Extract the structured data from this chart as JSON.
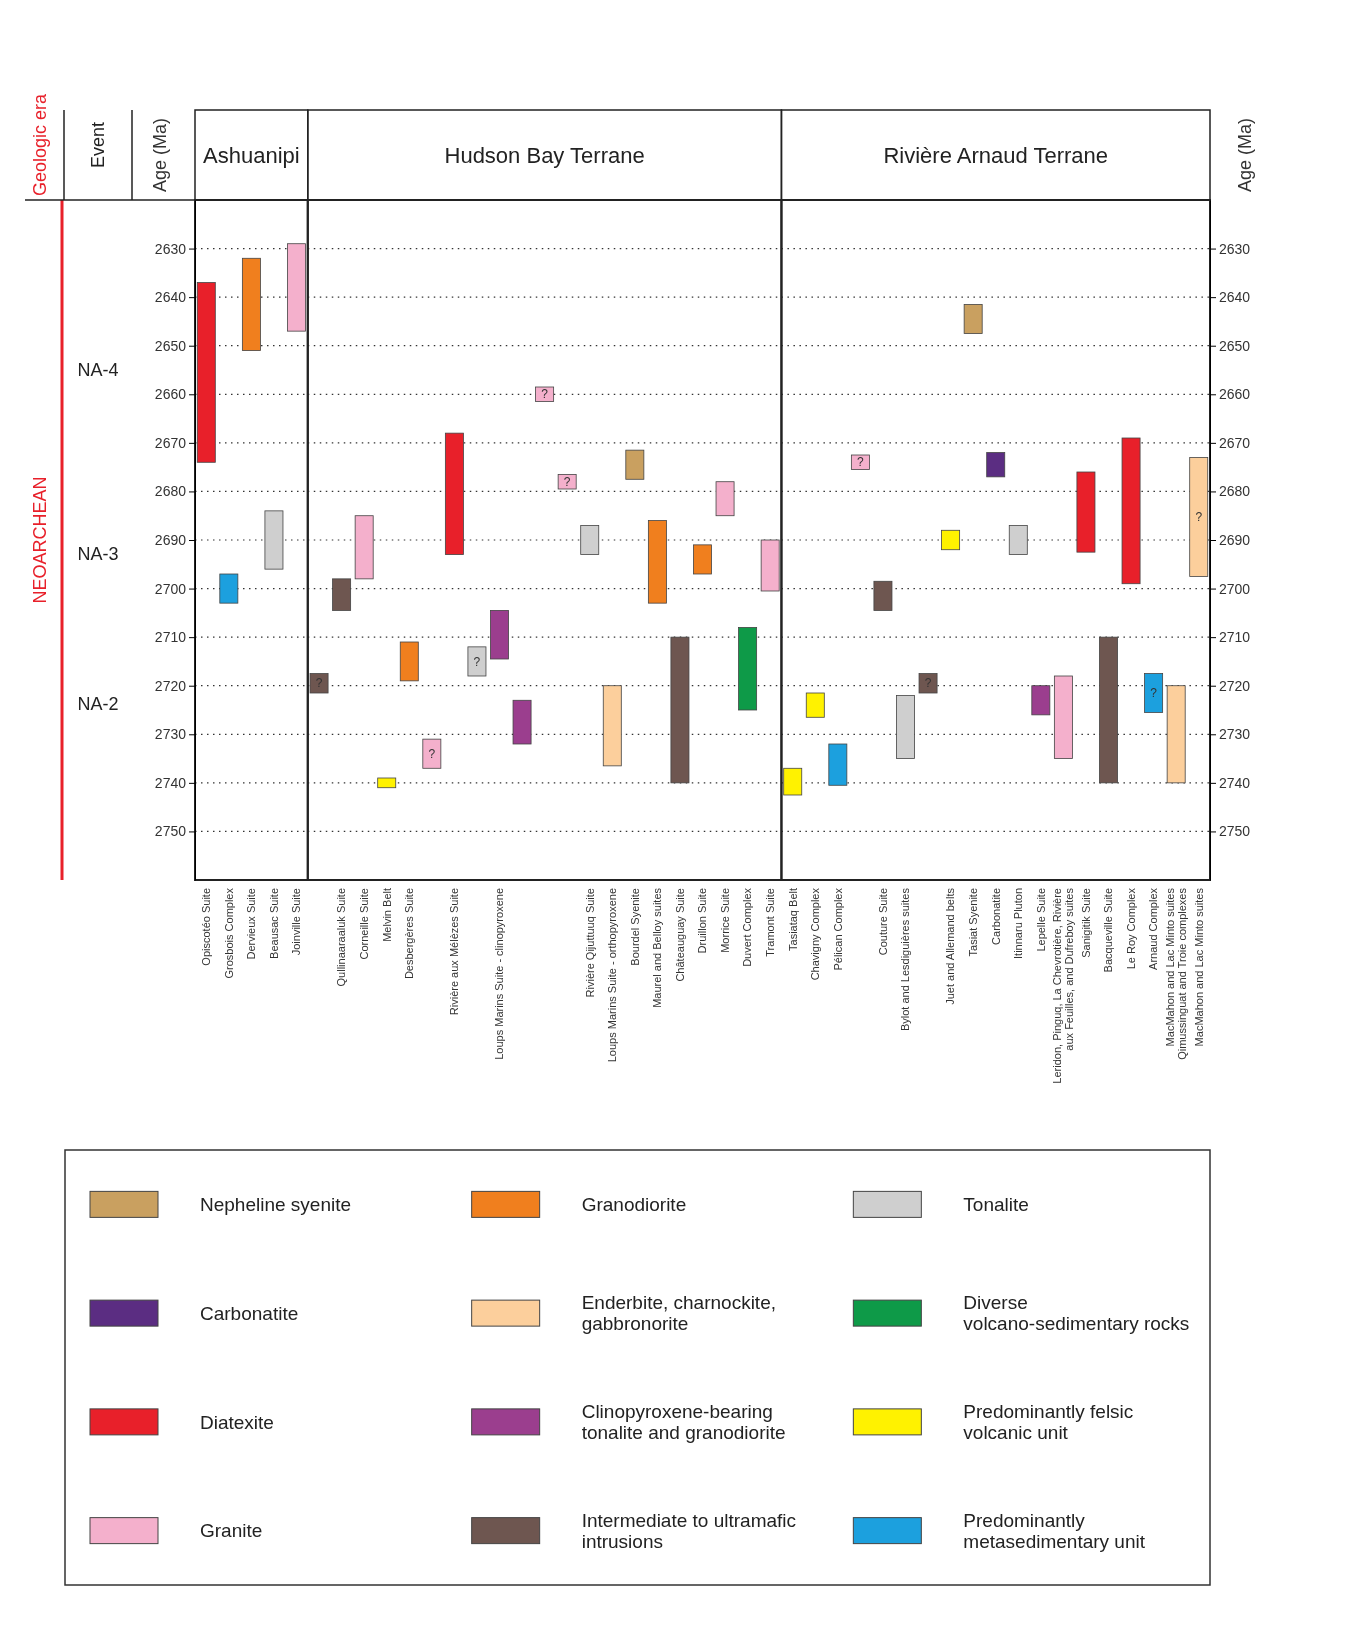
{
  "chart_data": [
    {
      "type": "bar",
      "title": "Ashuanipi",
      "ylabel": "Age (Ma)",
      "annotations": [
        "Geologic era",
        "Event",
        "NEOARCHEAN",
        "NA-4",
        "NA-3",
        "NA-2"
      ],
      "categories": [
        "Opiscotéo Suite",
        "Grosbois Complex",
        "Dervieux Suite",
        "Beausac Suite",
        "Joinville Suite"
      ],
      "ylim": [
        2760,
        2620
      ],
      "yticks": [
        2630,
        2640,
        2650,
        2660,
        2670,
        2680,
        2690,
        2700,
        2710,
        2720,
        2730,
        2740,
        2750
      ],
      "grid": "y",
      "series": [
        {
          "color": "#e8202a",
          "values": [
            37,
            null,
            null,
            null,
            null
          ],
          "base": [
            2637,
            null,
            null,
            null,
            null
          ]
        },
        {
          "color": "#f4b0cc",
          "values": [
            null,
            null,
            null,
            null,
            18
          ],
          "base": [
            null,
            null,
            null,
            null,
            2629
          ]
        },
        {
          "color": "#f07f1e",
          "values": [
            null,
            null,
            19,
            null,
            null
          ],
          "base": [
            null,
            null,
            2632,
            null,
            null
          ]
        },
        {
          "color": "#cfcfcf",
          "values": [
            null,
            null,
            null,
            12,
            null
          ],
          "base": [
            null,
            null,
            null,
            2684,
            null
          ]
        },
        {
          "color": "#1ca0de",
          "values": [
            null,
            6,
            null,
            null,
            null
          ],
          "base": [
            null,
            2697,
            null,
            null,
            null
          ]
        }
      ]
    },
    {
      "type": "bar",
      "title": "Hudson Bay Terrane",
      "tick_labels": "x",
      "categories": [
        null,
        "Qullinaaraaluk Suite",
        "Corneille Suite",
        "Melvin Belt",
        "Desbergères Suite",
        null,
        "Rivière aux Mélèzes Suite",
        null,
        "Loups Marins Suite - clinopyroxene",
        null,
        null,
        null,
        "Rivière Qijuttuuq Suite",
        "Loups Marins Suite - orthopyroxene",
        "Bourdel Syenite",
        "Maurel and Belloy suites",
        "Châteauguay Suite",
        "Druillon Suite",
        "Morrice Suite",
        "Duvert Complex",
        "Tramont Suite"
      ],
      "ylim": [
        2760,
        2620
      ],
      "yticks": [
        2630,
        2640,
        2650,
        2660,
        2670,
        2680,
        2690,
        2700,
        2710,
        2720,
        2730,
        2740,
        2750
      ],
      "grid": "y",
      "series": [
        {
          "color": "#c9a060",
          "values": [
            null,
            null,
            null,
            null,
            null,
            null,
            null,
            null,
            null,
            null,
            null,
            null,
            null,
            null,
            6,
            null,
            null,
            null,
            null,
            null,
            null
          ],
          "base": [
            null,
            null,
            null,
            null,
            null,
            null,
            null,
            null,
            null,
            null,
            null,
            null,
            null,
            null,
            2671.5,
            null,
            null,
            null,
            null,
            null,
            null
          ]
        },
        {
          "color": "#e8202a",
          "values": [
            null,
            null,
            null,
            null,
            null,
            null,
            25,
            null,
            null,
            null,
            null,
            null,
            null,
            null,
            null,
            null,
            null,
            null,
            null,
            null,
            null
          ],
          "base": [
            null,
            null,
            null,
            null,
            null,
            null,
            2668,
            null,
            null,
            null,
            null,
            null,
            null,
            null,
            null,
            null,
            null,
            null,
            null,
            null,
            null
          ]
        },
        {
          "color": "#f4b0cc",
          "values": [
            null,
            null,
            13,
            null,
            null,
            6,
            null,
            null,
            null,
            null,
            3,
            3,
            null,
            null,
            null,
            null,
            null,
            null,
            7,
            null,
            10.5
          ],
          "base": [
            null,
            null,
            2685,
            null,
            null,
            2731,
            null,
            null,
            null,
            null,
            2658.5,
            2676.5,
            null,
            null,
            null,
            null,
            null,
            null,
            2678,
            null,
            2690
          ],
          "value_labels": [
            null,
            null,
            null,
            null,
            null,
            "?",
            null,
            null,
            null,
            null,
            "?",
            "?",
            null,
            null,
            null,
            null,
            null,
            null,
            null,
            null,
            null
          ]
        },
        {
          "color": "#f07f1e",
          "values": [
            null,
            null,
            null,
            null,
            8,
            null,
            null,
            null,
            null,
            null,
            null,
            null,
            null,
            null,
            null,
            17,
            null,
            6,
            null,
            null,
            null
          ],
          "base": [
            null,
            null,
            null,
            null,
            2711,
            null,
            null,
            null,
            null,
            null,
            null,
            null,
            null,
            null,
            null,
            2686,
            null,
            2691,
            null,
            null,
            null
          ]
        },
        {
          "color": "#fccf9c",
          "values": [
            null,
            null,
            null,
            null,
            null,
            null,
            null,
            null,
            null,
            null,
            null,
            null,
            null,
            16.5,
            null,
            null,
            null,
            null,
            null,
            null,
            null
          ],
          "base": [
            null,
            null,
            null,
            null,
            null,
            null,
            null,
            null,
            null,
            null,
            null,
            null,
            null,
            2720,
            null,
            null,
            null,
            null,
            null,
            null,
            null
          ]
        },
        {
          "color": "#9b3e8e",
          "values": [
            null,
            null,
            null,
            null,
            null,
            null,
            null,
            null,
            10,
            9,
            null,
            null,
            null,
            null,
            null,
            null,
            null,
            null,
            null,
            null,
            null
          ],
          "base": [
            null,
            null,
            null,
            null,
            null,
            null,
            null,
            null,
            2704.5,
            2723,
            null,
            null,
            null,
            null,
            null,
            null,
            null,
            null,
            null,
            null,
            null
          ]
        },
        {
          "color": "#6e5650",
          "values": [
            4,
            6.5,
            null,
            null,
            null,
            null,
            null,
            null,
            null,
            null,
            null,
            null,
            null,
            null,
            null,
            null,
            30,
            null,
            null,
            null,
            null
          ],
          "base": [
            2717.5,
            2698,
            null,
            null,
            null,
            null,
            null,
            null,
            null,
            null,
            null,
            null,
            null,
            null,
            null,
            null,
            2710,
            null,
            null,
            null,
            null
          ],
          "value_labels": [
            "?",
            null,
            null,
            null,
            null,
            null,
            null,
            null,
            null,
            null,
            null,
            null,
            null,
            null,
            null,
            null,
            null,
            null,
            null,
            null,
            null
          ]
        },
        {
          "color": "#cfcfcf",
          "values": [
            null,
            null,
            null,
            null,
            null,
            null,
            null,
            6,
            null,
            null,
            null,
            null,
            6,
            null,
            null,
            null,
            null,
            null,
            null,
            null,
            null
          ],
          "base": [
            null,
            null,
            null,
            null,
            null,
            null,
            null,
            2712,
            null,
            null,
            null,
            null,
            2687,
            null,
            null,
            null,
            null,
            null,
            null,
            null,
            null
          ],
          "value_labels": [
            null,
            null,
            null,
            null,
            null,
            null,
            null,
            "?",
            null,
            null,
            null,
            null,
            null,
            null,
            null,
            null,
            null,
            null,
            null,
            null,
            null
          ]
        },
        {
          "color": "#0e9a48",
          "values": [
            null,
            null,
            null,
            null,
            null,
            null,
            null,
            null,
            null,
            null,
            null,
            null,
            null,
            null,
            null,
            null,
            null,
            null,
            null,
            17,
            null
          ],
          "base": [
            null,
            null,
            null,
            null,
            null,
            null,
            null,
            null,
            null,
            null,
            null,
            null,
            null,
            null,
            null,
            null,
            null,
            null,
            null,
            2708,
            null
          ]
        },
        {
          "color": "#fff200",
          "values": [
            null,
            null,
            null,
            2,
            null,
            null,
            null,
            null,
            null,
            null,
            null,
            null,
            null,
            null,
            null,
            null,
            null,
            null,
            null,
            null,
            null
          ],
          "base": [
            null,
            null,
            null,
            2739,
            null,
            null,
            null,
            null,
            null,
            null,
            null,
            null,
            null,
            null,
            null,
            null,
            null,
            null,
            null,
            null,
            null
          ]
        }
      ]
    },
    {
      "type": "bar",
      "title": "Rivière Arnaud Terrane",
      "y2label": "Age (Ma)",
      "legend": "bottom",
      "categories": [
        "Tasiataq Belt",
        "Chavigny Complex",
        "Pélican Complex",
        null,
        "Couture Suite",
        "Bylot and Lesdiguières suites",
        null,
        "Juet and Allemand belts",
        "Tasiat Syenite",
        "Carbonatite",
        "Itinnaru Pluton",
        "Lepelle Suite",
        "Leridon, Pinguq, La Chevrotière, Rivière aux Feuilles, and Dufreboy suites",
        "Sanigitik Suite",
        "Bacqueville Suite",
        "Le Roy Complex",
        "Arnaud Complex",
        "MacMahon and Lac Minto suites Qimussinguat and Troie complexes",
        "MacMahon and Lac Minto suites"
      ],
      "y2lim": [
        2760,
        2620
      ],
      "y2ticks": [
        2630,
        2640,
        2650,
        2660,
        2670,
        2680,
        2690,
        2700,
        2710,
        2720,
        2730,
        2740,
        2750
      ],
      "grid": "y",
      "series": [
        {
          "name": "Nepheline syenite",
          "color": "#c9a060",
          "axis": "y2",
          "values": [
            null,
            null,
            null,
            null,
            null,
            null,
            null,
            null,
            6,
            null,
            null,
            null,
            null,
            null,
            null,
            null,
            null,
            null,
            null
          ],
          "base": [
            null,
            null,
            null,
            null,
            null,
            null,
            null,
            null,
            2641.5,
            null,
            null,
            null,
            null,
            null,
            null,
            null,
            null,
            null,
            null
          ]
        },
        {
          "name": "Carbonatite",
          "color": "#5b2d82",
          "axis": "y2",
          "values": [
            null,
            null,
            null,
            null,
            null,
            null,
            null,
            null,
            null,
            5,
            null,
            null,
            null,
            null,
            null,
            null,
            null,
            null,
            null
          ],
          "base": [
            null,
            null,
            null,
            null,
            null,
            null,
            null,
            null,
            null,
            2672,
            null,
            null,
            null,
            null,
            null,
            null,
            null,
            null,
            null
          ]
        },
        {
          "name": "Diatexite",
          "color": "#e8202a",
          "axis": "y2",
          "values": [
            null,
            null,
            null,
            null,
            null,
            null,
            null,
            null,
            null,
            null,
            null,
            null,
            null,
            16.5,
            null,
            30,
            null,
            null,
            null
          ],
          "base": [
            null,
            null,
            null,
            null,
            null,
            null,
            null,
            null,
            null,
            null,
            null,
            null,
            null,
            2676,
            null,
            2669,
            null,
            null,
            null
          ]
        },
        {
          "name": "Granite",
          "color": "#f4b0cc",
          "axis": "y2",
          "values": [
            null,
            null,
            null,
            3,
            null,
            null,
            null,
            null,
            null,
            null,
            null,
            null,
            17,
            null,
            null,
            null,
            null,
            null,
            null
          ],
          "base": [
            null,
            null,
            null,
            2672.5,
            null,
            null,
            null,
            null,
            null,
            null,
            null,
            null,
            2718,
            null,
            null,
            null,
            null,
            null,
            null
          ],
          "value_labels": [
            null,
            null,
            null,
            "?",
            null,
            null,
            null,
            null,
            null,
            null,
            null,
            null,
            null,
            null,
            null,
            null,
            null,
            null,
            null
          ]
        },
        {
          "name": "Granodiorite",
          "color": "#f07f1e",
          "axis": "y2",
          "values": [
            null,
            null,
            null,
            null,
            null,
            null,
            null,
            null,
            null,
            null,
            null,
            null,
            null,
            null,
            null,
            null,
            null,
            null,
            null
          ],
          "base": [
            null,
            null,
            null,
            null,
            null,
            null,
            null,
            null,
            null,
            null,
            null,
            null,
            null,
            null,
            null,
            null,
            null,
            null,
            null
          ]
        },
        {
          "name": "Enderbite, charnockite, gabbronorite",
          "color": "#fccf9c",
          "axis": "y2",
          "values": [
            null,
            null,
            null,
            null,
            null,
            null,
            null,
            null,
            null,
            null,
            null,
            null,
            null,
            null,
            null,
            null,
            null,
            20,
            24.5
          ],
          "base": [
            null,
            null,
            null,
            null,
            null,
            null,
            null,
            null,
            null,
            null,
            null,
            null,
            null,
            null,
            null,
            null,
            null,
            2720,
            2673
          ],
          "value_labels": [
            null,
            null,
            null,
            null,
            null,
            null,
            null,
            null,
            null,
            null,
            null,
            null,
            null,
            null,
            null,
            null,
            null,
            null,
            "?"
          ]
        },
        {
          "name": "Clinopyroxene-bearing tonalite and granodiorite",
          "color": "#9b3e8e",
          "axis": "y2",
          "values": [
            null,
            null,
            null,
            null,
            null,
            null,
            null,
            null,
            null,
            null,
            null,
            6,
            null,
            null,
            null,
            null,
            null,
            null,
            null
          ],
          "base": [
            null,
            null,
            null,
            null,
            null,
            null,
            null,
            null,
            null,
            null,
            null,
            2720,
            null,
            null,
            null,
            null,
            null,
            null,
            null
          ]
        },
        {
          "name": "Intermediate to ultramafic intrusions",
          "color": "#6e5650",
          "axis": "y2",
          "values": [
            null,
            null,
            null,
            null,
            6,
            null,
            4,
            null,
            null,
            null,
            null,
            null,
            null,
            null,
            30,
            null,
            null,
            null,
            null
          ],
          "base": [
            null,
            null,
            null,
            null,
            2698.5,
            null,
            2717.5,
            null,
            null,
            null,
            null,
            null,
            null,
            null,
            2710,
            null,
            null,
            null,
            null
          ],
          "value_labels": [
            null,
            null,
            null,
            null,
            null,
            null,
            "?",
            null,
            null,
            null,
            null,
            null,
            null,
            null,
            null,
            null,
            null,
            null,
            null
          ]
        },
        {
          "name": "Tonalite",
          "color": "#cfcfcf",
          "axis": "y2",
          "values": [
            null,
            null,
            null,
            null,
            null,
            13,
            null,
            null,
            null,
            null,
            6,
            null,
            null,
            null,
            null,
            null,
            null,
            null,
            null
          ],
          "base": [
            null,
            null,
            null,
            null,
            null,
            2722,
            null,
            null,
            null,
            null,
            2687,
            null,
            null,
            null,
            null,
            null,
            null,
            null,
            null
          ]
        },
        {
          "name": "Diverse volcano-sedimentary rocks",
          "color": "#0e9a48",
          "axis": "y2",
          "values": [
            null,
            null,
            null,
            null,
            null,
            null,
            null,
            null,
            null,
            null,
            null,
            null,
            null,
            null,
            null,
            null,
            null,
            null,
            null
          ],
          "base": [
            null,
            null,
            null,
            null,
            null,
            null,
            null,
            null,
            null,
            null,
            null,
            null,
            null,
            null,
            null,
            null,
            null,
            null,
            null
          ]
        },
        {
          "name": "Predominantly felsic volcanic unit",
          "color": "#fff200",
          "axis": "y2",
          "values": [
            5.5,
            5,
            null,
            null,
            null,
            null,
            null,
            4,
            null,
            null,
            null,
            null,
            null,
            null,
            null,
            null,
            null,
            null,
            null
          ],
          "base": [
            2737,
            2721.5,
            null,
            null,
            null,
            null,
            null,
            2688,
            null,
            null,
            null,
            null,
            null,
            null,
            null,
            null,
            null,
            null,
            null
          ]
        },
        {
          "name": "Predominantly metasedimentary unit",
          "color": "#1ca0de",
          "axis": "y2",
          "values": [
            null,
            null,
            8.5,
            null,
            null,
            null,
            null,
            null,
            null,
            null,
            null,
            null,
            null,
            null,
            null,
            null,
            8,
            null,
            null
          ],
          "base": [
            null,
            null,
            2732,
            null,
            null,
            null,
            null,
            null,
            null,
            null,
            null,
            null,
            null,
            null,
            null,
            null,
            2717.5,
            null,
            null
          ],
          "value_labels": [
            null,
            null,
            null,
            null,
            null,
            null,
            null,
            null,
            null,
            null,
            null,
            null,
            null,
            null,
            null,
            null,
            "?",
            null,
            null
          ]
        }
      ]
    }
  ]
}
